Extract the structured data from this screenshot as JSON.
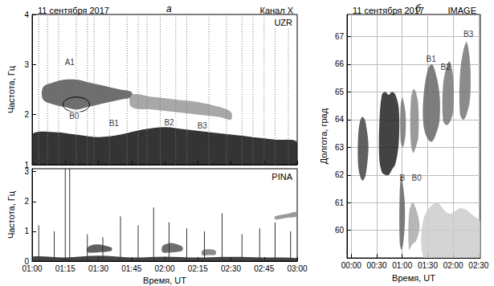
{
  "chart_data": [
    {
      "type": "spectrogram",
      "panel": "а",
      "date": "11 сентября 2017",
      "channel": "Канал X",
      "title": "UZR",
      "ylabel": "Частота, Гц",
      "tick_labels": "y",
      "xlim": [
        60,
        180
      ],
      "xticks": [
        60,
        75,
        90,
        105,
        120,
        135,
        150,
        165,
        180
      ],
      "ylim": [
        1,
        4
      ],
      "yticks": [
        1,
        2,
        3,
        4
      ],
      "series": [
        {
          "type": "band",
          "color": "#111111",
          "x": [
            60,
            70,
            80,
            90,
            100,
            110,
            120,
            130,
            140,
            150,
            160,
            170,
            180
          ],
          "low": [
            1.0,
            1.0,
            1.0,
            1.0,
            1.0,
            1.0,
            1.0,
            1.0,
            1.0,
            1.0,
            1.0,
            1.0,
            1.0
          ],
          "high": [
            1.6,
            1.65,
            1.6,
            1.55,
            1.6,
            1.7,
            1.75,
            1.7,
            1.65,
            1.6,
            1.55,
            1.5,
            1.45
          ]
        },
        {
          "type": "band",
          "color": "#555555",
          "x": [
            65,
            70,
            75,
            80,
            85,
            90,
            95,
            100,
            105
          ],
          "low": [
            2.3,
            2.2,
            2.15,
            2.1,
            2.15,
            2.2,
            2.25,
            2.3,
            2.35
          ],
          "high": [
            2.55,
            2.65,
            2.7,
            2.7,
            2.65,
            2.6,
            2.55,
            2.5,
            2.45
          ]
        },
        {
          "type": "band",
          "color": "#999999",
          "x": [
            105,
            115,
            125,
            135,
            145,
            150
          ],
          "low": [
            2.15,
            2.1,
            2.05,
            2.0,
            1.95,
            1.9
          ],
          "high": [
            2.4,
            2.35,
            2.3,
            2.25,
            2.15,
            2.05
          ]
        }
      ],
      "impulses": {
        "x": [
          63,
          67,
          72,
          80,
          85,
          88,
          95,
          103,
          108,
          112,
          118,
          125,
          130,
          140,
          148,
          155,
          160,
          165,
          170,
          176
        ]
      },
      "ellipse": {
        "x": 80,
        "y": 2.2,
        "rx": 6,
        "ry": 0.15
      },
      "annotations": [
        {
          "text": "A1",
          "x": 77,
          "y": 3.05
        },
        {
          "text": "B0",
          "x": 79,
          "y": 1.97
        },
        {
          "text": "B1",
          "x": 97,
          "y": 1.82
        },
        {
          "text": "B2",
          "x": 122,
          "y": 1.85
        },
        {
          "text": "B3",
          "x": 137,
          "y": 1.78
        }
      ]
    },
    {
      "type": "spectrogram",
      "title": "PINA",
      "ylabel": "Частота, Гц",
      "xlabel": "Время, UT",
      "xlim": [
        60,
        180
      ],
      "xticks": [
        {
          "value": 60,
          "label": "01:00"
        },
        {
          "value": 75,
          "label": "01:15"
        },
        {
          "value": 90,
          "label": "01:30"
        },
        {
          "value": 105,
          "label": "01:45"
        },
        {
          "value": 120,
          "label": "02:00"
        },
        {
          "value": 135,
          "label": "02:15"
        },
        {
          "value": 150,
          "label": "02:30"
        },
        {
          "value": 165,
          "label": "02:45"
        },
        {
          "value": 180,
          "label": "03:00"
        }
      ],
      "ylim": [
        0,
        3.1
      ],
      "yticks": [
        0,
        1,
        2,
        3
      ],
      "series": [
        {
          "type": "band",
          "color": "#222222",
          "x": [
            60,
            75,
            90,
            105,
            120,
            135,
            150,
            165,
            180
          ],
          "low": [
            0,
            0,
            0,
            0,
            0,
            0,
            0,
            0,
            0
          ],
          "high": [
            0.15,
            0.12,
            0.18,
            0.12,
            0.15,
            0.12,
            0.14,
            0.12,
            0.1
          ]
        },
        {
          "type": "band",
          "color": "#444444",
          "x": [
            85,
            88,
            91,
            94,
            96
          ],
          "low": [
            0.3,
            0.28,
            0.3,
            0.32,
            0.35
          ],
          "high": [
            0.45,
            0.55,
            0.55,
            0.5,
            0.45
          ]
        },
        {
          "type": "band",
          "color": "#555555",
          "x": [
            119,
            122,
            125,
            128
          ],
          "low": [
            0.3,
            0.28,
            0.3,
            0.35
          ],
          "high": [
            0.5,
            0.6,
            0.58,
            0.48
          ]
        },
        {
          "type": "band",
          "color": "#777777",
          "x": [
            137,
            140,
            143
          ],
          "low": [
            0.2,
            0.2,
            0.22
          ],
          "high": [
            0.35,
            0.4,
            0.35
          ]
        },
        {
          "type": "band",
          "color": "#888888",
          "x": [
            170,
            175,
            180
          ],
          "low": [
            1.4,
            1.45,
            1.5
          ],
          "high": [
            1.5,
            1.58,
            1.65
          ]
        }
      ],
      "impulses": {
        "x": [
          63,
          70,
          75,
          77,
          85,
          92,
          100,
          108,
          115,
          122,
          130,
          138,
          146,
          155,
          163,
          170,
          177
        ],
        "top": [
          1.2,
          1.0,
          3.1,
          3.1,
          0.9,
          0.8,
          1.5,
          1.2,
          1.8,
          1.3,
          1.1,
          1.0,
          1.6,
          0.9,
          1.1,
          1.3,
          1.0
        ]
      }
    },
    {
      "type": "spectrogram",
      "panel": "б",
      "date": "11 сентября 2017",
      "title": "IMAGE",
      "ylabel": "Долгота, град",
      "xlabel": "Время, UT",
      "grid": true,
      "xlim": [
        -5,
        152
      ],
      "xticks": [
        {
          "value": 0,
          "label": "00:00"
        },
        {
          "value": 30,
          "label": "00:30"
        },
        {
          "value": 60,
          "label": "01:00"
        },
        {
          "value": 90,
          "label": "01:30"
        },
        {
          "value": 120,
          "label": "02:00"
        },
        {
          "value": 150,
          "label": "02:30"
        }
      ],
      "ylim": [
        59,
        67.8
      ],
      "yticks": [
        60,
        61,
        62,
        63,
        64,
        65,
        66,
        67
      ],
      "series": [
        {
          "type": "band",
          "color": "#cccccc",
          "x": [
            85,
            100,
            115,
            130,
            145,
            152
          ],
          "low": [
            59,
            59,
            59,
            59,
            59,
            59
          ],
          "high": [
            60.4,
            61,
            60.6,
            60.8,
            60.5,
            60.3
          ]
        },
        {
          "type": "band",
          "color": "#444444",
          "x": [
            8,
            10,
            13,
            16,
            18,
            20
          ],
          "low": [
            62.4,
            62,
            61.8,
            61.9,
            62.2,
            62.8
          ],
          "high": [
            63.3,
            63.9,
            64.1,
            64,
            63.7,
            63.2
          ]
        },
        {
          "type": "band",
          "color": "#222222",
          "x": [
            33,
            36,
            40,
            44,
            48,
            52,
            56
          ],
          "low": [
            62.6,
            62.1,
            62,
            62,
            62.2,
            62.4,
            63.2
          ],
          "high": [
            63.8,
            64.9,
            65,
            64.9,
            65,
            64.9,
            64.4
          ]
        },
        {
          "type": "band",
          "color": "#666666",
          "x": [
            57,
            59,
            61,
            63
          ],
          "low": [
            59.6,
            59.3,
            59.5,
            60.2
          ],
          "high": [
            61.3,
            62,
            61.6,
            61
          ]
        },
        {
          "type": "band",
          "color": "#777777",
          "x": [
            58,
            60,
            62,
            64
          ],
          "low": [
            63.3,
            63,
            63.1,
            63.5
          ],
          "high": [
            64.4,
            64.8,
            64.6,
            64.2
          ]
        },
        {
          "type": "band",
          "color": "#888888",
          "x": [
            70,
            73,
            76,
            79
          ],
          "low": [
            63.2,
            62.8,
            63,
            63.4
          ],
          "high": [
            64.6,
            65.1,
            65,
            64.5
          ]
        },
        {
          "type": "band",
          "color": "#aaaaaa",
          "x": [
            68,
            72,
            76,
            80
          ],
          "low": [
            59.3,
            59.5,
            59.6,
            60
          ],
          "high": [
            60.6,
            61,
            60.8,
            60.3
          ]
        },
        {
          "type": "band",
          "color": "#666666",
          "x": [
            85,
            90,
            95,
            100,
            104
          ],
          "low": [
            63.8,
            63.3,
            63.2,
            63.5,
            64
          ],
          "high": [
            64.8,
            65.8,
            66,
            65.6,
            64.9
          ]
        },
        {
          "type": "band",
          "color": "#777777",
          "x": [
            108,
            112,
            116,
            120
          ],
          "low": [
            64,
            63.8,
            63.9,
            64.3
          ],
          "high": [
            65.2,
            65.9,
            66.1,
            65.5
          ]
        },
        {
          "type": "band",
          "color": "#777777",
          "x": [
            128,
            132,
            136,
            140
          ],
          "low": [
            64.2,
            64,
            64.2,
            64.8
          ],
          "high": [
            65.6,
            66.5,
            66.8,
            66
          ]
        }
      ],
      "annotations": [
        {
          "text": "B",
          "x": 60,
          "y": 61.9
        },
        {
          "text": "B0",
          "x": 77,
          "y": 61.9
        },
        {
          "text": "B1",
          "x": 94,
          "y": 66.2
        },
        {
          "text": "B2",
          "x": 111,
          "y": 65.9
        },
        {
          "text": "B3",
          "x": 138,
          "y": 67.1
        }
      ]
    }
  ]
}
